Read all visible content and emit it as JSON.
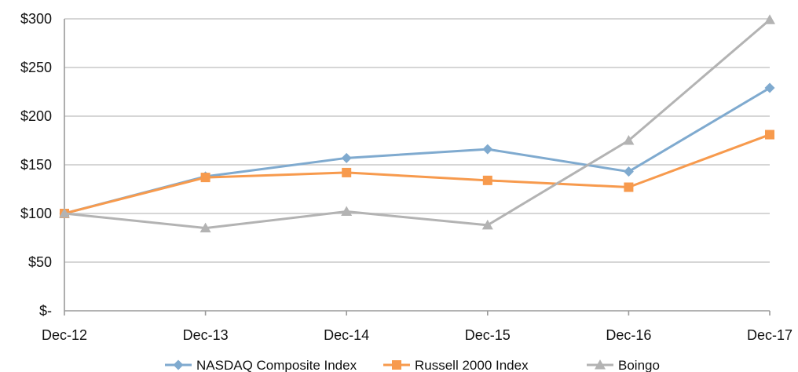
{
  "chart_data": {
    "type": "line",
    "categories": [
      "Dec-12",
      "Dec-13",
      "Dec-14",
      "Dec-15",
      "Dec-16",
      "Dec-17"
    ],
    "series": [
      {
        "name": "NASDAQ Composite Index",
        "values": [
          100,
          138,
          157,
          166,
          143,
          229
        ],
        "color": "#7faacf",
        "marker": "diamond"
      },
      {
        "name": "Russell 2000 Index",
        "values": [
          100,
          137,
          142,
          134,
          127,
          181
        ],
        "color": "#f79a4d",
        "marker": "square"
      },
      {
        "name": "Boingo",
        "values": [
          100,
          85,
          102,
          88,
          175,
          299
        ],
        "color": "#b3b3b3",
        "marker": "triangle"
      }
    ],
    "y_ticks": [
      0,
      50,
      100,
      150,
      200,
      250,
      300
    ],
    "y_tick_labels": [
      "$-",
      "$50",
      "$100",
      "$150",
      "$200",
      "$250",
      "$300"
    ],
    "ylim": [
      0,
      300
    ],
    "grid": true,
    "legend": "bottom"
  }
}
